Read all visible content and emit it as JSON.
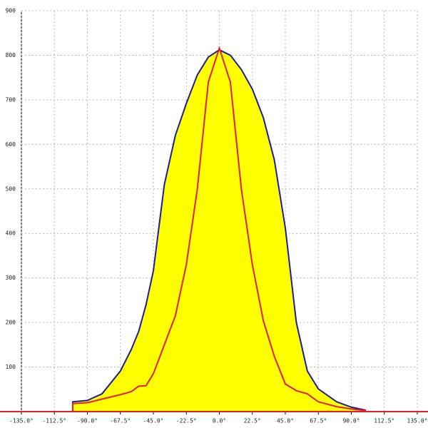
{
  "chart_data": {
    "type": "area",
    "xlim": [
      -135,
      135
    ],
    "ylim": [
      0,
      900
    ],
    "xticks": [
      {
        "value": -135,
        "label": "-135.0°"
      },
      {
        "value": -112.5,
        "label": "-112.5°"
      },
      {
        "value": -90,
        "label": "-90.0°"
      },
      {
        "value": -67.5,
        "label": "-67.5°"
      },
      {
        "value": -45,
        "label": "-45.0°"
      },
      {
        "value": -22.5,
        "label": "-22.5°"
      },
      {
        "value": 0,
        "label": "0.0°"
      },
      {
        "value": 22.5,
        "label": "22.5°"
      },
      {
        "value": 45,
        "label": "45.0°"
      },
      {
        "value": 67.5,
        "label": "67.5°"
      },
      {
        "value": 90,
        "label": "90.0°"
      },
      {
        "value": 112.5,
        "label": "112.5°"
      },
      {
        "value": 135,
        "label": "135.0°"
      }
    ],
    "yticks": [
      100,
      200,
      300,
      400,
      500,
      600,
      700,
      800,
      900
    ],
    "grid": true,
    "x": [
      -100,
      -90,
      -80,
      -67.5,
      -60,
      -55,
      -50,
      -45,
      -37.5,
      -30,
      -22.5,
      -15,
      -7.5,
      0,
      7.5,
      15,
      22.5,
      30,
      37.5,
      45,
      52.5,
      60,
      67.5,
      80,
      90,
      100
    ],
    "series": [
      {
        "color": "#1c1ca0",
        "fill": "#ffff00",
        "values": [
          22,
          25,
          40,
          91,
          140,
          180,
          240,
          316,
          510,
          620,
          692,
          756,
          796,
          812,
          800,
          768,
          724,
          660,
          565,
          412,
          200,
          91,
          51,
          22,
          10,
          3
        ]
      },
      {
        "color": "#e0202a",
        "values": [
          18,
          20,
          28,
          38,
          45,
          57,
          58,
          85,
          150,
          215,
          330,
          500,
          740,
          816,
          740,
          500,
          330,
          204,
          124,
          62,
          47,
          40,
          22,
          11,
          6,
          2
        ]
      }
    ]
  }
}
